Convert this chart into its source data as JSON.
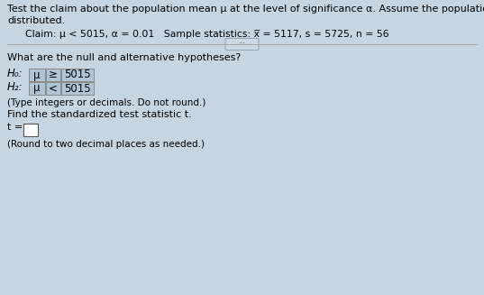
{
  "bg_color": "#c5d5e2",
  "title_line1": "Test the claim about the population mean μ at the level of significance α. Assume the population is normally",
  "title_line2": "distributed.",
  "claim_text": "Claim: μ < 5015, α = 0.01   Sample statistics: x̅ = 5117, s = 5725, n = 56",
  "separator_dots": "···",
  "question1": "What are the null and alternative hypotheses?",
  "h0_label": "H₀:",
  "h0_mu": "μ",
  "h0_symbol": "≥",
  "h0_value": "5015",
  "ha_label": "H₂:",
  "ha_mu": "μ",
  "ha_symbol": "<",
  "ha_value": "5015",
  "type_note": "(Type integers or decimals. Do not round.)",
  "find_text": "Find the standardized test statistic t.",
  "t_prefix": "t = ",
  "round_note": "(Round to two decimal places as needed.)",
  "box_color": "#b0c4d8",
  "box_edge": "#888888",
  "white": "#ffffff",
  "line_color": "#aaaaaa",
  "dot_color": "#9aabb8"
}
